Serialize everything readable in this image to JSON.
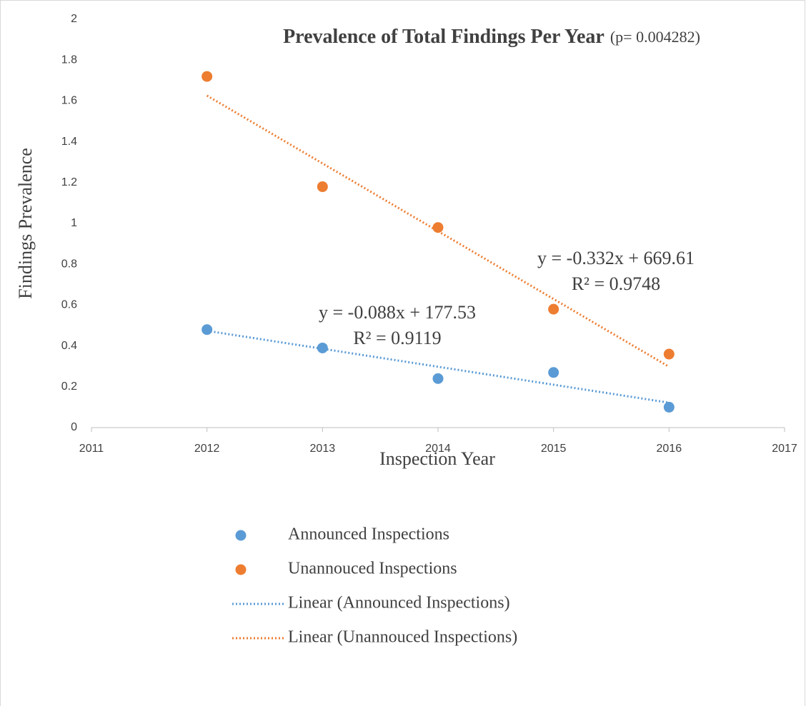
{
  "chart_data": {
    "type": "scatter",
    "title": "Prevalence of Total Findings Per Year",
    "subtitle": "(p= 0.004282)",
    "x_label": "Inspection Year",
    "y_label": "Findings Prevalence",
    "xlim": [
      2011,
      2017
    ],
    "xticks": [
      2011,
      2012,
      2013,
      2014,
      2015,
      2016,
      2017
    ],
    "ylim": [
      0,
      2
    ],
    "yticks": [
      0,
      0.2,
      0.4,
      0.6,
      0.8,
      1,
      1.2,
      1.4,
      1.6,
      1.8,
      2
    ],
    "grid": false,
    "legend": "bottom",
    "series": [
      {
        "name": "Announced Inspections",
        "color": "#5b9bd5",
        "x": [
          2012,
          2013,
          2014,
          2015,
          2016
        ],
        "values": [
          0.48,
          0.39,
          0.24,
          0.27,
          0.1
        ],
        "trendline": {
          "name": "Linear (Announced Inspections)",
          "slope": -0.088,
          "intercept": 177.53,
          "equation": "y = -0.088x + 177.53",
          "r2": "R² = 0.9119"
        }
      },
      {
        "name": "Unannouced Inspections",
        "color": "#ed7d31",
        "x": [
          2012,
          2013,
          2014,
          2015,
          2016
        ],
        "values": [
          1.72,
          1.18,
          0.98,
          0.58,
          0.36
        ],
        "trendline": {
          "name": "Linear (Unannouced Inspections)",
          "slope": -0.332,
          "intercept": 669.61,
          "equation": "y = -0.332x + 669.61",
          "r2": "R² = 0.9748"
        }
      }
    ]
  }
}
